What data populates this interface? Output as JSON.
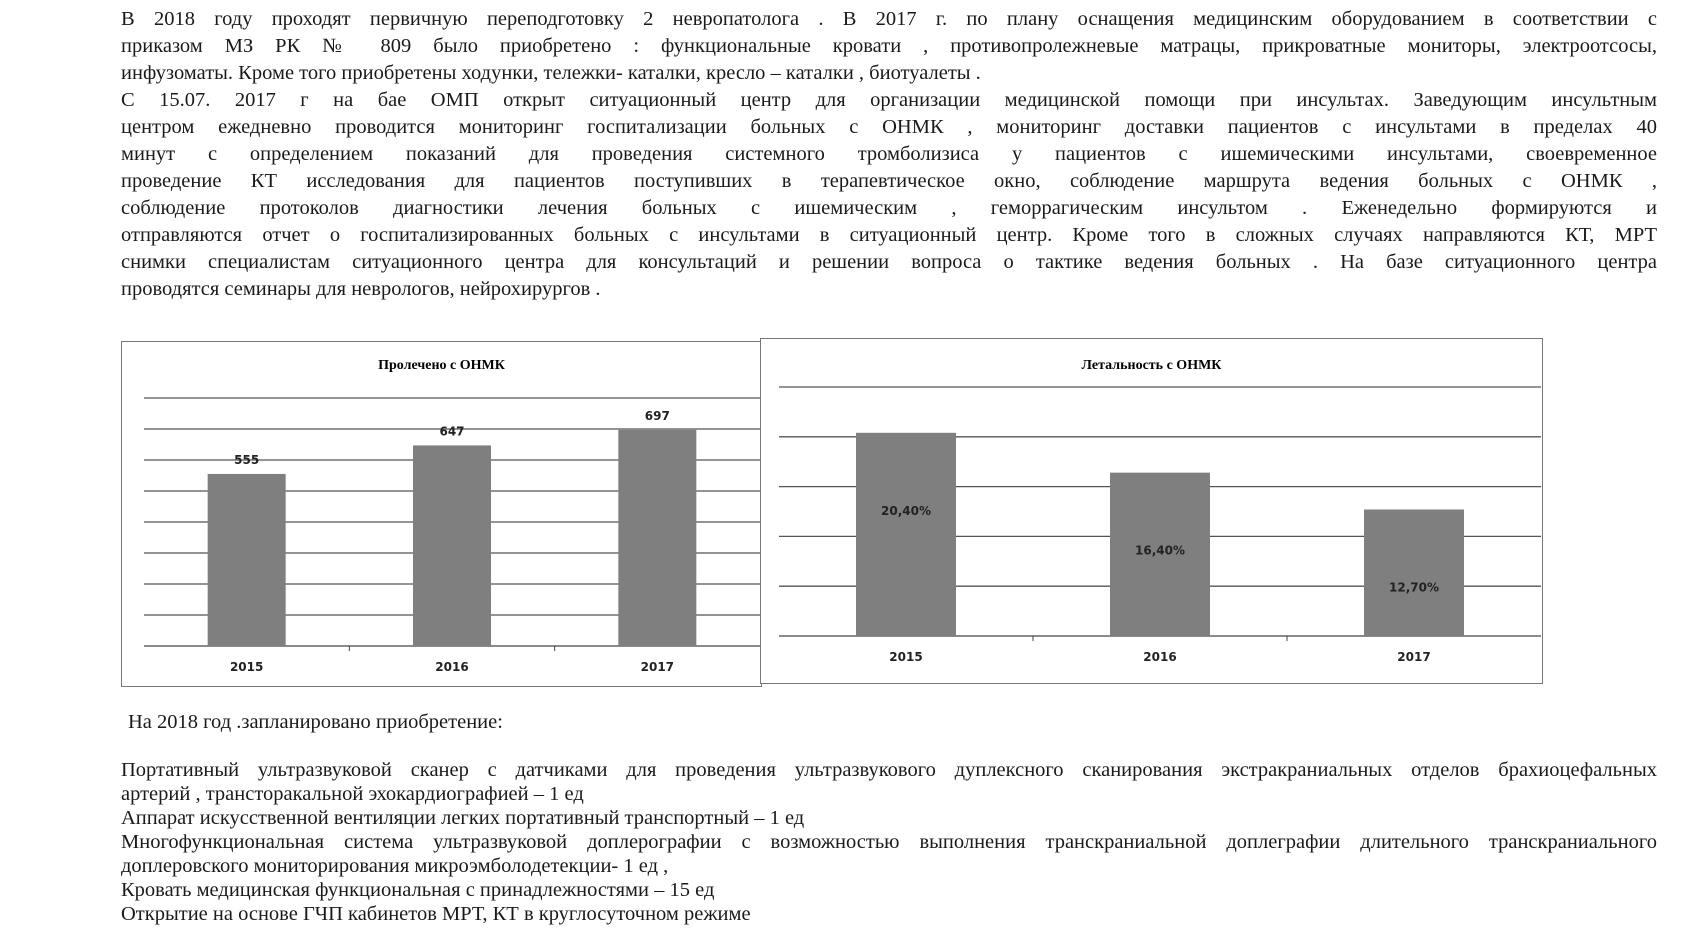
{
  "paragraph1": [
    "В 2018 году проходят первичную переподготовку 2 невропатолога . В 2017 г.   по плану оснащения медицинским оборудованием  в соответствии  с",
    "приказом МЗ РК  № 809   было приобретено  :   функциональные кровати , противопролежневые матрацы, прикроватные мониторы, электроотсосы,",
    "инфузоматы.  Кроме того  приобретены   ходунки, тележки- каталки, кресло – каталки , биотуалеты .",
    " С 15.07. 2017 г  на бае ОМП  открыт  ситуационный   центр  для организации  медицинской помощи  при инсультах. Заведующим   инсультным",
    "центром  ежедневно проводится мониторинг   госпитализации больных с  ОНМК  ,   мониторинг доставки  пациентов с инсультами   в пределах 40",
    "минут  с  определением показаний  для  проведения системного тромболизиса     у пациентов с ишемическими инсультами,  своевременное",
    "проведение КТ  исследования  для пациентов    поступивших     в  терапевтическое окно, соблюдение маршрута ведения больных с ОНМК ,",
    "соблюдение протоколов диагностики лечения больных с    ишемическим , геморрагическим инсультом     .  Еженедельно  формируются и",
    "отправляются отчет о  госпитализированных больных с инсультами  в ситуационный центр. Кроме того   в сложных случаях направляются КТ, МРТ",
    "снимки  специалистам ситуационного центра для консультаций и решении вопроса   о тактике ведения больных .   На базе ситуационного центра",
    "проводятся  семинары для неврологов,  нейрохирургов ."
  ],
  "chart_data": [
    {
      "type": "bar",
      "title": "Пролечено с ОНМК",
      "categories": [
        "2015",
        "2016",
        "2017"
      ],
      "values": [
        555,
        647,
        697
      ],
      "data_labels": [
        "555",
        "647",
        "697"
      ],
      "ylim": [
        0,
        800
      ],
      "grid_step": 100,
      "grid": true,
      "legend": "none",
      "bar_color": "#7f7f7f"
    },
    {
      "type": "bar",
      "title": "Летальность  с ОНМК",
      "categories": [
        "2015",
        "2016",
        "2017"
      ],
      "values": [
        20.4,
        16.4,
        12.7
      ],
      "data_labels": [
        "20,40%",
        "16,40%",
        "12,70%"
      ],
      "ylim": [
        0,
        25
      ],
      "grid_step": 5,
      "grid": true,
      "legend": "none",
      "bar_color": "#7f7f7f"
    }
  ],
  "plan_title": "На 2018 год .запланировано приобретение:",
  "plan_items": [
    [
      "  Портативный  ультразвуковой сканер с датчиками для проведения ультразвукового дуплексного сканирования экстракраниальных отделов  брахиоцефальных",
      "артерий , трансторакальной эхокардиографией – 1 ед"
    ],
    [
      " Аппарат искусственной вентиляции легких портативный транспортный – 1 ед"
    ],
    [
      " Многофункциональная система ультразвуковой доплерографии с возможностью выполнения транскраниальной  доплеграфии  длительного транскраниального",
      "доплеровского мониторирования  микроэмболодетекции- 1 ед ,"
    ],
    [
      "  Кровать  медицинская функциональная с принадлежностями – 15 ед"
    ],
    [
      "  Открытие на основе ГЧП   кабинетов МРТ, КТ  в круглосуточном режиме"
    ]
  ]
}
